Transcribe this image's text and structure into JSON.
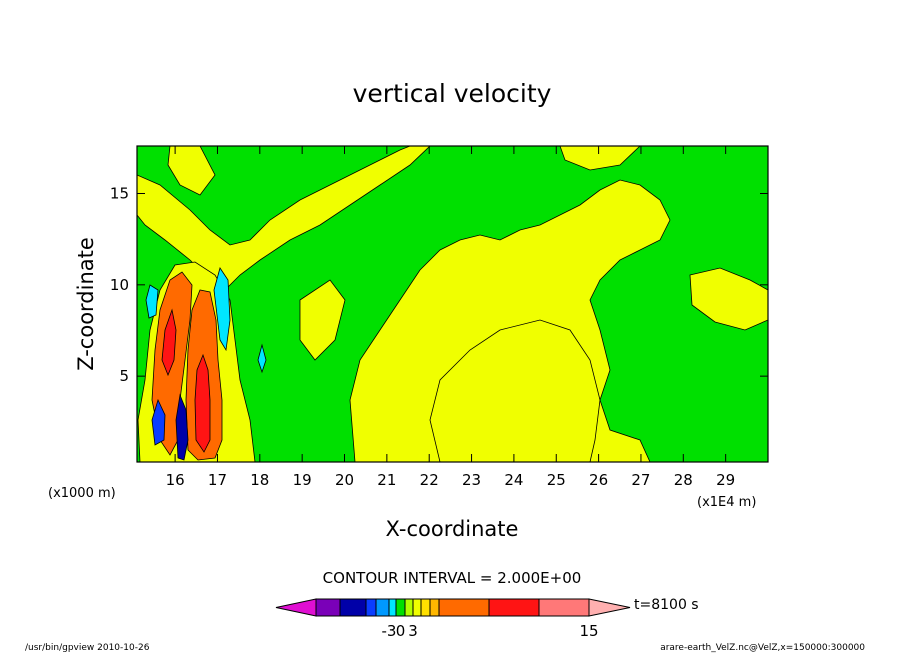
{
  "chart_data": {
    "type": "heatmap",
    "title": "vertical velocity",
    "xlabel": "X-coordinate",
    "ylabel": "Z-coordinate",
    "x_ticks": [
      "16",
      "17",
      "18",
      "19",
      "20",
      "21",
      "22",
      "23",
      "24",
      "25",
      "26",
      "27",
      "28",
      "29"
    ],
    "x_tick_values": [
      16,
      17,
      18,
      19,
      20,
      21,
      22,
      23,
      24,
      25,
      26,
      27,
      28,
      29
    ],
    "xlim": [
      15.1,
      30.0
    ],
    "x_unit_left": "(x1000 m)",
    "x_unit_right": "(x1E4 m)",
    "y_ticks": [
      "5",
      "10",
      "15"
    ],
    "y_tick_values": [
      5,
      10,
      15
    ],
    "ylim": [
      0.3,
      17.6
    ],
    "contour_interval_text": "CONTOUR INTERVAL = 2.000E+00",
    "time_label": "t=8100 s",
    "colorbar": {
      "labels": [
        "-3",
        "0",
        "3",
        "15"
      ],
      "label_values": [
        -3,
        0,
        3,
        15
      ],
      "levels": [
        -11,
        -9,
        -7,
        -5,
        -3,
        -1,
        1,
        3,
        5,
        7,
        9,
        11,
        13,
        15
      ],
      "colors": [
        "#e00fd2",
        "#7a00b8",
        "#0000a8",
        "#0a3dff",
        "#0099ff",
        "#00e6ff",
        "#00e000",
        "#b3ff00",
        "#f0ff00",
        "#ffe000",
        "#ffb700",
        "#ff6a00",
        "#ff1414",
        "#ff7878",
        "#ffb0b0"
      ]
    },
    "background_level": 0,
    "regions": [
      {
        "name": "updraft-main-1",
        "value": 9,
        "color": "#ff6a00",
        "x_center": 15.8,
        "z_center": 6.5,
        "width_km": 0.8,
        "height_km": 9.0
      },
      {
        "name": "updraft-main-2",
        "value": 9,
        "color": "#ff6a00",
        "x_center": 16.7,
        "z_center": 5.5,
        "width_km": 0.6,
        "height_km": 11.0
      },
      {
        "name": "updraft-core-1",
        "value": 13,
        "color": "#ff1414",
        "x_center": 16.6,
        "z_center": 3.5,
        "width_km": 0.3,
        "height_km": 4.0
      },
      {
        "name": "downdraft-core",
        "value": -9,
        "color": "#0000a8",
        "x_center": 16.2,
        "z_center": 2.0,
        "width_km": 0.3,
        "height_km": 2.5
      },
      {
        "name": "weak-updraft-band",
        "value": 2,
        "color": "#f0ff00",
        "x_center": 24.5,
        "z_center": 5.0,
        "width_km": 8.0,
        "height_km": 8.0
      }
    ]
  },
  "footer": {
    "left": "/usr/bin/gpview  2010-10-26",
    "right": "arare-earth_VelZ.nc@VelZ,x=150000:300000"
  }
}
